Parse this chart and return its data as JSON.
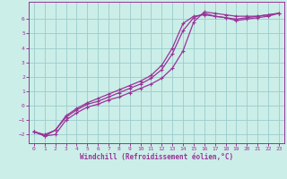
{
  "xlabel": "Windchill (Refroidissement éolien,°C)",
  "xlim": [
    -0.5,
    23.5
  ],
  "ylim": [
    -2.6,
    7.2
  ],
  "yticks": [
    -2,
    -1,
    0,
    1,
    2,
    3,
    4,
    5,
    6
  ],
  "xticks": [
    0,
    1,
    2,
    3,
    4,
    5,
    6,
    7,
    8,
    9,
    10,
    11,
    12,
    13,
    14,
    15,
    16,
    17,
    18,
    19,
    20,
    21,
    22,
    23
  ],
  "bg_color": "#cceee8",
  "grid_color": "#99cccc",
  "line_color": "#993399",
  "curve1_x": [
    0,
    1,
    2,
    3,
    4,
    5,
    6,
    7,
    8,
    9,
    10,
    11,
    12,
    13,
    14,
    15,
    16,
    17,
    18,
    19,
    20,
    21,
    22,
    23
  ],
  "curve1_y": [
    -1.8,
    -2.1,
    -2.0,
    -1.0,
    -0.5,
    -0.1,
    0.1,
    0.4,
    0.6,
    0.9,
    1.2,
    1.5,
    1.9,
    2.6,
    3.8,
    5.8,
    6.5,
    6.4,
    6.3,
    6.2,
    6.2,
    6.2,
    6.3,
    6.4
  ],
  "curve2_x": [
    0,
    1,
    2,
    3,
    4,
    5,
    6,
    7,
    8,
    9,
    10,
    11,
    12,
    13,
    14,
    15,
    16,
    17,
    18,
    19,
    20,
    21,
    22,
    23
  ],
  "curve2_y": [
    -1.8,
    -2.1,
    -1.7,
    -0.8,
    -0.3,
    0.1,
    0.3,
    0.6,
    0.9,
    1.2,
    1.5,
    1.9,
    2.5,
    3.6,
    5.2,
    6.1,
    6.4,
    6.2,
    6.1,
    6.0,
    6.1,
    6.2,
    6.3,
    6.4
  ],
  "curve3_x": [
    0,
    1,
    2,
    3,
    4,
    5,
    6,
    7,
    8,
    9,
    10,
    11,
    12,
    13,
    14,
    15,
    16,
    17,
    18,
    19,
    20,
    21,
    22,
    23
  ],
  "curve3_y": [
    -1.8,
    -2.0,
    -1.7,
    -0.7,
    -0.2,
    0.2,
    0.5,
    0.8,
    1.1,
    1.4,
    1.7,
    2.1,
    2.8,
    4.0,
    5.7,
    6.2,
    6.3,
    6.2,
    6.1,
    5.9,
    6.0,
    6.1,
    6.2,
    6.4
  ]
}
